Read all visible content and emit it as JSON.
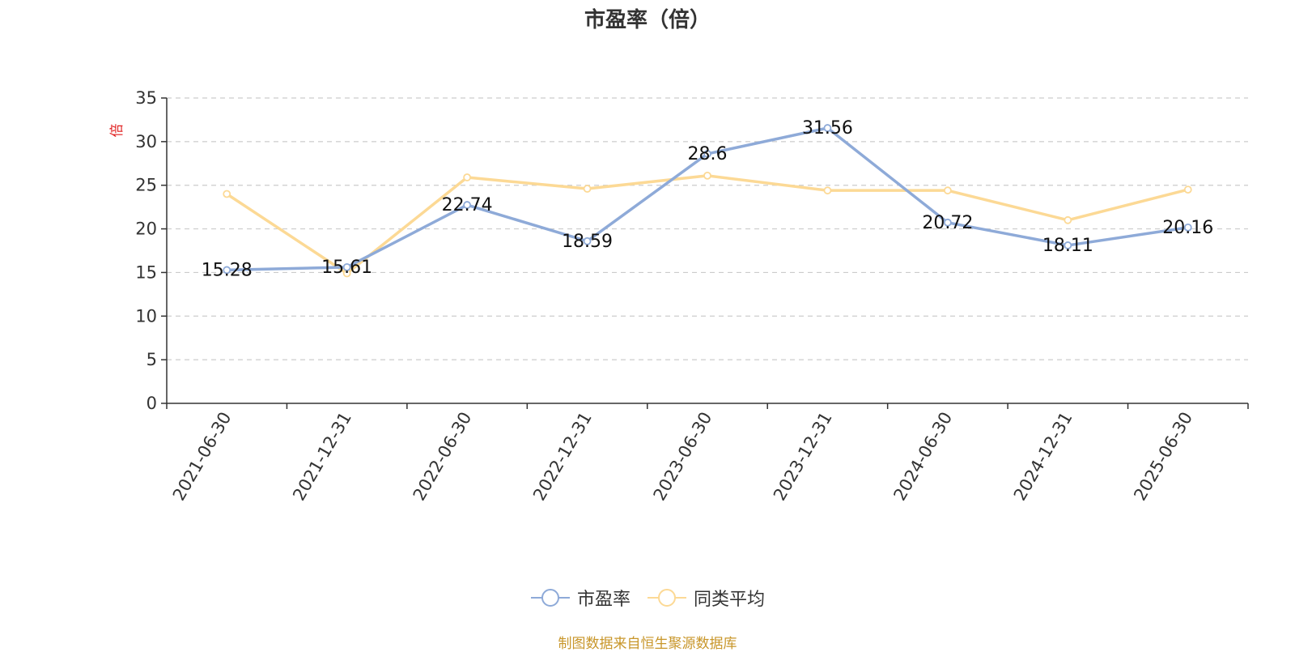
{
  "chart_data": {
    "type": "line",
    "title": "市盈率（倍）",
    "ylabel": "倍",
    "xlabel": "",
    "categories": [
      "2021-06-30",
      "2021-12-31",
      "2022-06-30",
      "2022-12-31",
      "2023-06-30",
      "2023-12-31",
      "2024-06-30",
      "2024-12-31",
      "2025-06-30"
    ],
    "ylim": [
      0,
      35
    ],
    "yticks": [
      0,
      5,
      10,
      15,
      20,
      25,
      30,
      35
    ],
    "grid": true,
    "legend_position": "bottom-center",
    "series": [
      {
        "name": "市盈率",
        "color": "#8eaad8",
        "values": [
          15.28,
          15.61,
          22.74,
          18.59,
          28.6,
          31.56,
          20.72,
          18.11,
          20.16
        ],
        "labels": [
          "15.28",
          "15.61",
          "22.74",
          "18.59",
          "28.6",
          "31.56",
          "20.72",
          "18.11",
          "20.16"
        ],
        "show_labels": true
      },
      {
        "name": "同类平均",
        "color": "#fcd995",
        "values": [
          24.0,
          14.9,
          25.9,
          24.6,
          26.1,
          24.4,
          24.4,
          21.0,
          24.5
        ],
        "show_labels": false
      }
    ]
  },
  "footer": {
    "source": "制图数据来自恒生聚源数据库"
  }
}
